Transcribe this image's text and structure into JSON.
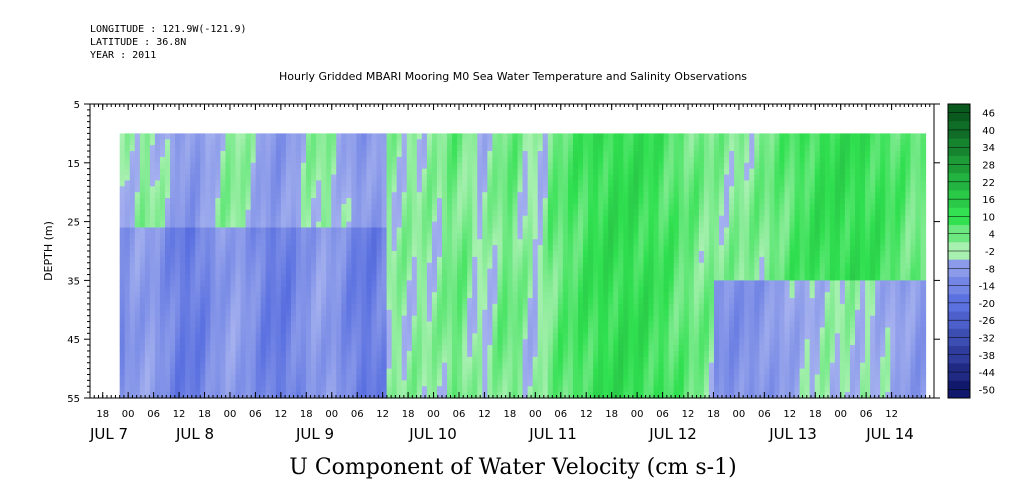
{
  "header": {
    "longitude": "LONGITUDE : 121.9W(-121.9)",
    "latitude": "LATITUDE : 36.8N",
    "year": "YEAR : 2011"
  },
  "chart_data": {
    "type": "heatmap",
    "title": "Hourly Gridded MBARI Mooring M0 Sea Water Temperature and Salinity Observations",
    "xlabel": "U Component of Water Velocity (cm s-1)",
    "ylabel": "DEPTH (m)",
    "y_ticks": [
      5,
      15,
      25,
      35,
      45,
      55
    ],
    "ylim": [
      55,
      5
    ],
    "y_data_range": [
      10,
      55
    ],
    "x_hour_ticks": [
      "18",
      "00",
      "06",
      "12",
      "18",
      "00",
      "06",
      "12",
      "18",
      "00",
      "06",
      "12",
      "18",
      "00",
      "06",
      "12",
      "18",
      "00",
      "06",
      "12",
      "18",
      "00",
      "06",
      "12",
      "18",
      "00",
      "06",
      "12",
      "18",
      "00",
      "06",
      "12"
    ],
    "x_day_labels": [
      "JUL 7",
      "JUL 8",
      "JUL 9",
      "JUL 10",
      "JUL 11",
      "JUL 12",
      "JUL 13",
      "JUL 14"
    ],
    "x_range_hours": [
      "2011-07-06T15:00",
      "2011-07-14T22:00"
    ],
    "data_range_hours": [
      "2011-07-06T22:00",
      "2011-07-14T20:00"
    ],
    "colorbar": {
      "labels": [
        "46",
        "40",
        "34",
        "28",
        "22",
        "16",
        "10",
        "4",
        "-2",
        "-8",
        "-14",
        "-20",
        "-26",
        "-32",
        "-38",
        "-44",
        "-50"
      ],
      "min": -50,
      "max": 50
    },
    "colors": {
      "strong_negative": "#0a1060",
      "negative": "#5a70e0",
      "weak_negative": "#a4b0ee",
      "weak_positive": "#a8f0b0",
      "positive": "#30e050",
      "strong_positive": "#0a5a20"
    },
    "grid": false
  }
}
